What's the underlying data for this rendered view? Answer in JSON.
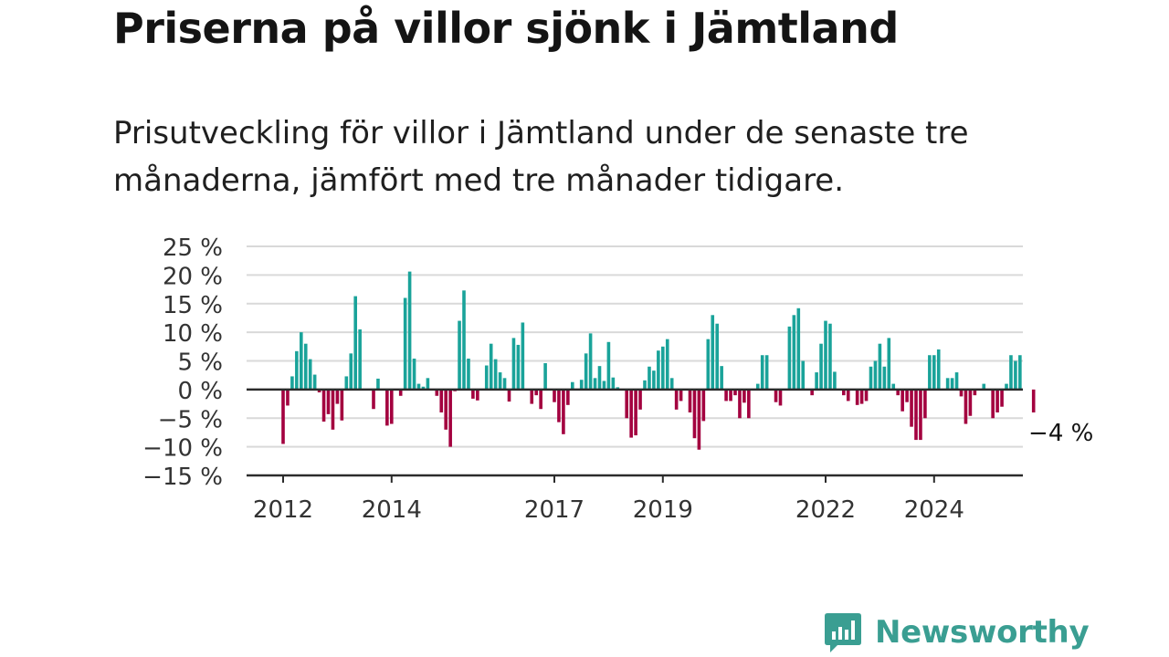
{
  "title": "Priserna på villor sjönk i Jämtland",
  "subtitle": "Prisutveckling för villor i Jämtland under de senaste tre månaderna, jämfört med tre månader tidigare.",
  "brand": {
    "name": "Newsworthy",
    "icon": "newsworthy-bar-chart-icon"
  },
  "colors": {
    "positive": "#1aa39a",
    "negative": "#a3003f",
    "grid": "#d9d9d9",
    "axis": "#2b2b2b",
    "text": "#333333",
    "brand": "#3a9e92"
  },
  "chart_data": {
    "type": "bar",
    "title": "",
    "xlabel": "",
    "ylabel": "",
    "ylim": [
      -15,
      25
    ],
    "yticks": [
      -15,
      -10,
      -5,
      0,
      5,
      10,
      15,
      20,
      25
    ],
    "ytick_labels": [
      "−15 %",
      "−10 %",
      "−5 %",
      "0 %",
      "5 %",
      "10 %",
      "15 %",
      "20 %",
      "25 %"
    ],
    "xticks": [
      2012,
      2014,
      2017,
      2019,
      2022,
      2024
    ],
    "xtick_labels": [
      "2012",
      "2014",
      "2017",
      "2019",
      "2022",
      "2024"
    ],
    "grid": true,
    "start": "2012-01",
    "frequency": "monthly",
    "annotation": {
      "text": "−4 %",
      "target": "last"
    },
    "values": [
      -9.5,
      -2.8,
      2.3,
      6.7,
      10.0,
      8.0,
      5.3,
      2.6,
      -0.5,
      -5.6,
      -4.3,
      -7.0,
      -2.5,
      -5.4,
      2.3,
      6.3,
      16.3,
      10.5,
      0.0,
      0.0,
      -3.4,
      1.9,
      0.0,
      -6.3,
      -6.0,
      0.0,
      -1.1,
      16.0,
      20.6,
      5.4,
      1.0,
      0.5,
      2.0,
      0.0,
      -1.1,
      -4.0,
      -7.0,
      -10.0,
      -0.3,
      12.0,
      17.3,
      5.4,
      -1.6,
      -1.9,
      0.0,
      4.2,
      8.0,
      5.3,
      3.0,
      2.0,
      -2.1,
      9.0,
      7.8,
      11.7,
      0.0,
      -2.5,
      -1.0,
      -3.4,
      4.6,
      0.0,
      -2.2,
      -5.7,
      -7.8,
      -2.7,
      1.3,
      0.0,
      1.7,
      6.3,
      9.8,
      2.0,
      4.1,
      1.5,
      8.3,
      2.1,
      0.4,
      0.0,
      -5.0,
      -8.4,
      -8.0,
      -3.5,
      1.6,
      4.0,
      3.3,
      6.8,
      7.5,
      8.8,
      2.0,
      -3.5,
      -2.0,
      0.0,
      -4.0,
      -8.5,
      -10.5,
      -5.5,
      8.8,
      13.0,
      11.5,
      4.1,
      -2.0,
      -2.0,
      -1.0,
      -5.0,
      -2.3,
      -5.0,
      0.0,
      1.0,
      6.0,
      6.0,
      0.0,
      -2.2,
      -2.8,
      0.0,
      11.0,
      13.0,
      14.2,
      5.0,
      0.0,
      -1.0,
      3.0,
      8.0,
      12.0,
      11.5,
      3.1,
      0.0,
      -1.0,
      -2.0,
      0.0,
      -2.7,
      -2.5,
      -2.0,
      4.0,
      5.0,
      8.0,
      4.0,
      9.0,
      1.0,
      -1.0,
      -3.8,
      -2.2,
      -6.5,
      -8.8,
      -8.8,
      -5.0,
      6.0,
      6.0,
      7.0,
      0.0,
      2.0,
      2.0,
      3.0,
      -1.2,
      -6.0,
      -4.6,
      -1.0,
      0.0,
      1.0,
      0.0,
      -5.0,
      -4.0,
      -3.0,
      1.0,
      6.0,
      5.0,
      6.0,
      0.0,
      0.0,
      -4.0
    ]
  }
}
